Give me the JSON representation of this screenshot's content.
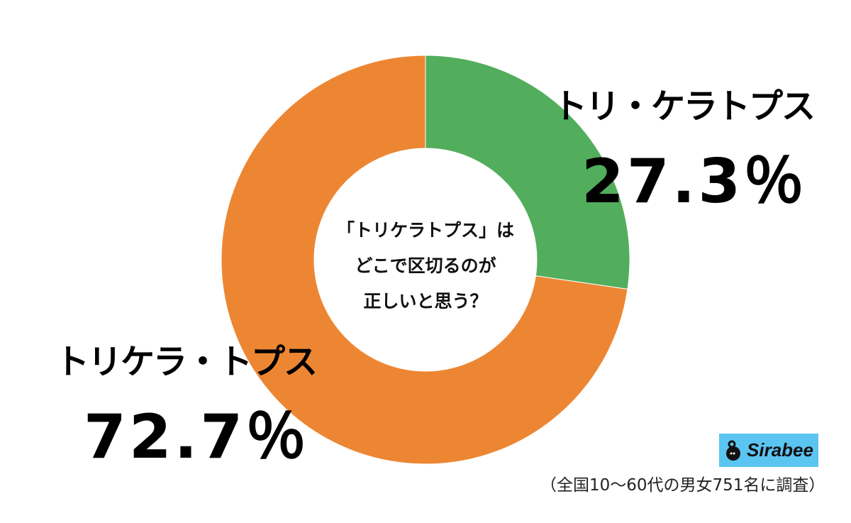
{
  "chart_data": {
    "type": "pie",
    "donut": true,
    "title": "「トリケラトプス」はどこで区切るのが正しいと思う？",
    "title_lines": [
      "「トリケラトプス」は",
      "どこで区切るのが",
      "正しいと思う？"
    ],
    "slices": [
      {
        "label": "トリ・ケラトプス",
        "value": 27.3,
        "value_label": "27.3％",
        "color": "#52ae5c"
      },
      {
        "label": "トリケラ・トプス",
        "value": 72.7,
        "value_label": "72.7％",
        "color": "#ed8633"
      }
    ],
    "start": "top",
    "direction": "clockwise"
  },
  "logo": {
    "text": "Sirabee",
    "background": "#5bc5f2"
  },
  "footnote": "（全国10〜60代の男女751名に調査）"
}
